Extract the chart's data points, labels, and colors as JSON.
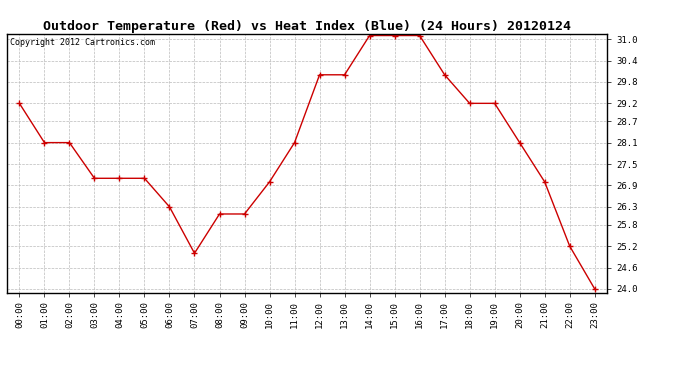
{
  "title": "Outdoor Temperature (Red) vs Heat Index (Blue) (24 Hours) 20120124",
  "copyright": "Copyright 2012 Cartronics.com",
  "hours": [
    "00:00",
    "01:00",
    "02:00",
    "03:00",
    "04:00",
    "05:00",
    "06:00",
    "07:00",
    "08:00",
    "09:00",
    "10:00",
    "11:00",
    "12:00",
    "13:00",
    "14:00",
    "15:00",
    "16:00",
    "17:00",
    "18:00",
    "19:00",
    "20:00",
    "21:00",
    "22:00",
    "23:00"
  ],
  "temp_red": [
    29.2,
    28.1,
    28.1,
    27.1,
    27.1,
    27.1,
    26.3,
    25.0,
    26.1,
    26.1,
    27.0,
    28.1,
    30.0,
    30.0,
    31.1,
    31.1,
    31.1,
    30.0,
    29.2,
    29.2,
    28.1,
    27.0,
    25.2,
    24.0
  ],
  "ylim_min": 23.9,
  "ylim_max": 31.15,
  "yticks": [
    24.0,
    24.6,
    25.2,
    25.8,
    26.3,
    26.9,
    27.5,
    28.1,
    28.7,
    29.2,
    29.8,
    30.4,
    31.0
  ],
  "line_color_red": "#cc0000",
  "background_color": "#ffffff",
  "grid_color": "#bbbbbb",
  "title_fontsize": 9.5,
  "copyright_fontsize": 6,
  "tick_fontsize": 6.5
}
